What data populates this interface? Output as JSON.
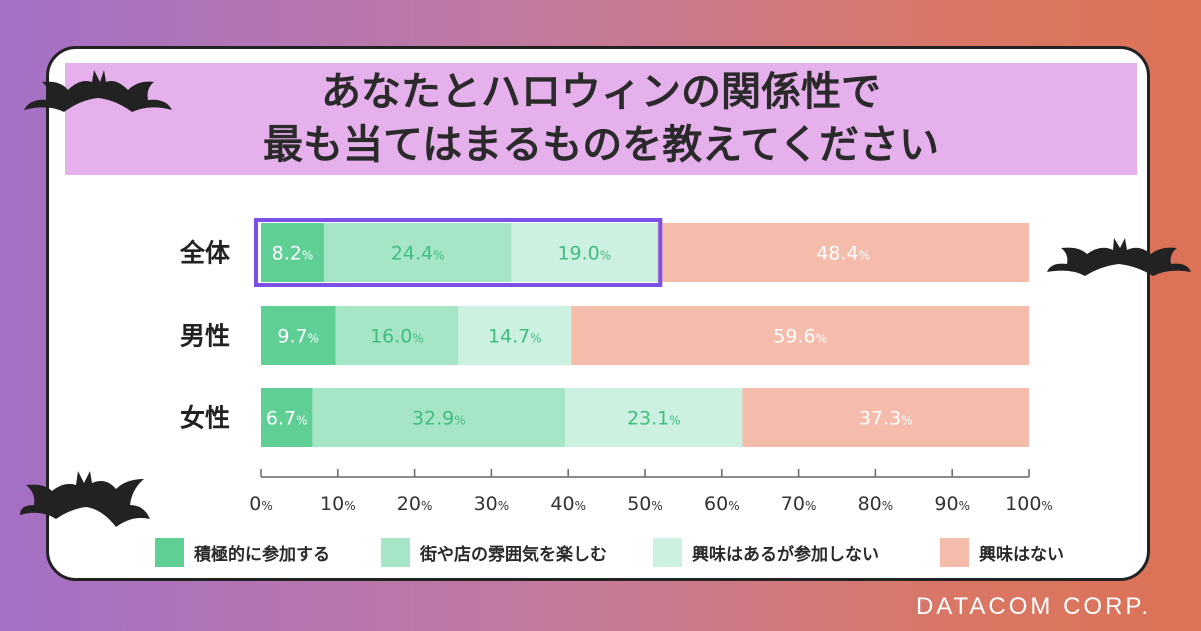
{
  "title_lines": [
    "あなたとハロウィンの関係性で",
    "最も当てはまるものを教えてください"
  ],
  "brand": "DATACOM CORP.",
  "colors": {
    "actively_participate": "#5fcf96",
    "enjoy_atmosphere": "#a6e5c6",
    "interested_not_participate": "#cdf1e0",
    "not_interested": "#f5bcac",
    "highlight": "#7c4fe5",
    "label_green": "#3fbe80",
    "label_white": "#ffffff"
  },
  "chart_data": {
    "type": "bar",
    "orientation": "horizontal-stacked",
    "categories": [
      "全体",
      "男性",
      "女性"
    ],
    "series": [
      {
        "name": "積極的に参加する",
        "values": [
          8.2,
          9.7,
          6.7
        ]
      },
      {
        "name": "街や店の雰囲気を楽しむ",
        "values": [
          24.4,
          16.0,
          32.9
        ]
      },
      {
        "name": "興味はあるが参加しない",
        "values": [
          19.0,
          14.7,
          23.1
        ]
      },
      {
        "name": "興味はない",
        "values": [
          48.4,
          59.6,
          37.3
        ]
      }
    ],
    "value_labels": [
      [
        "8.2",
        "24.4",
        "19.0",
        "48.4"
      ],
      [
        "9.7",
        "16.0",
        "14.7",
        "59.6"
      ],
      [
        "6.7",
        "32.9",
        "23.1",
        "37.3"
      ]
    ],
    "unit": "%",
    "xlim": [
      0,
      100
    ],
    "xticks": [
      "0",
      "10",
      "20",
      "30",
      "40",
      "50",
      "60",
      "70",
      "80",
      "90",
      "100"
    ],
    "highlight": {
      "category": "全体",
      "from": 0,
      "to": 51.6
    },
    "legend_position": "bottom"
  }
}
